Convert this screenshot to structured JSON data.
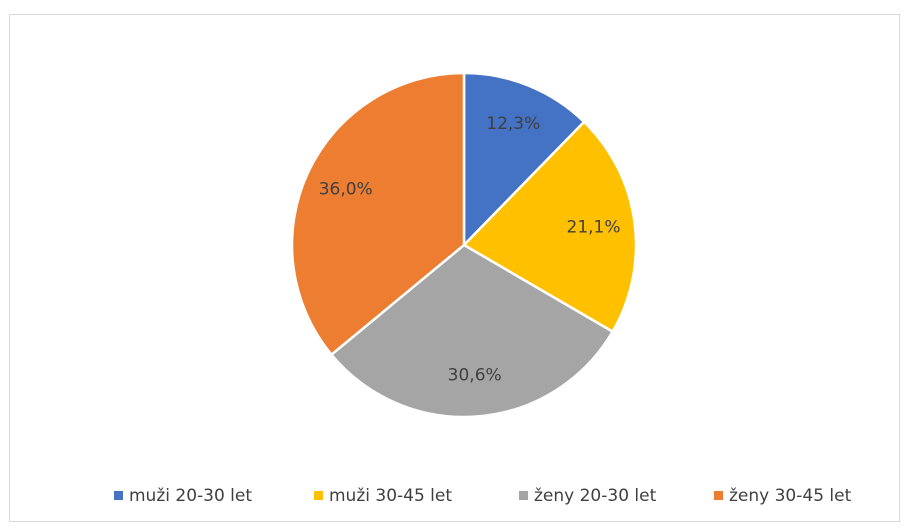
{
  "chart_data": {
    "type": "pie",
    "categories": [
      "muži 20-30 let",
      "muži 30-45 let",
      "ženy 20-30 let",
      "ženy 30-45 let"
    ],
    "values": [
      12.3,
      21.1,
      30.6,
      36.0
    ],
    "value_labels": [
      "12,3%",
      "21,1%",
      "30,6%",
      "36,0%"
    ],
    "colors": [
      "#4472c4",
      "#ffc000",
      "#a5a5a5",
      "#ed7d31"
    ],
    "legend": "bottom"
  }
}
